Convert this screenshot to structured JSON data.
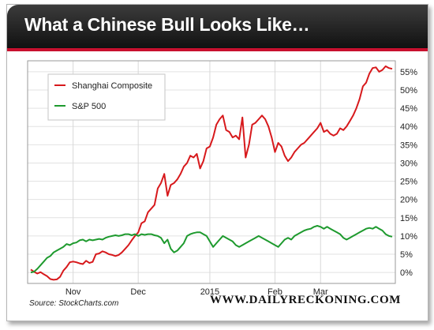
{
  "header": {
    "title": "What a Chinese Bull Looks Like…",
    "title_bg": "#111111",
    "accent_color": "#c8102e"
  },
  "footer": {
    "source": "Source: StockCharts.com",
    "site": "WWW.DAILYRECKONING.COM"
  },
  "chart_data": {
    "type": "line",
    "x_tick_labels": [
      "Nov",
      "Dec",
      "2015",
      "Feb",
      "Mar"
    ],
    "ylim": [
      -3,
      58
    ],
    "y_ticks": [
      0,
      5,
      10,
      15,
      20,
      25,
      30,
      35,
      40,
      45,
      50,
      55
    ],
    "y_tick_format": "{}%",
    "y_axis_side": "right",
    "grid": true,
    "legend_position": "top-left",
    "xlabel": "",
    "ylabel": "",
    "x": [
      0,
      1,
      2,
      3,
      4,
      5,
      6,
      7,
      8,
      9,
      10,
      11,
      12,
      13,
      14,
      15,
      16,
      17,
      18,
      19,
      20,
      21,
      22,
      23,
      24,
      25,
      26,
      27,
      28,
      29,
      30,
      31,
      32,
      33,
      34,
      35,
      36,
      37,
      38,
      39,
      40,
      41,
      42,
      43,
      44,
      45,
      46,
      47,
      48,
      49,
      50,
      51,
      52,
      53,
      54,
      55,
      56,
      57,
      58,
      59,
      60,
      61,
      62,
      63,
      64,
      65,
      66,
      67,
      68,
      69,
      70,
      71,
      72,
      73,
      74,
      75,
      76,
      77,
      78,
      79,
      80,
      81,
      82,
      83,
      84,
      85,
      86,
      87,
      88,
      89,
      90,
      91,
      92,
      93,
      94,
      95,
      96,
      97,
      98,
      99,
      100,
      101,
      102,
      103,
      104,
      105,
      106,
      107,
      108,
      109,
      110,
      111
    ],
    "x_tick_index": [
      13,
      33,
      55,
      75,
      89
    ],
    "series": [
      {
        "name": "Shanghai Composite",
        "color": "#d7191c",
        "values": [
          0.8,
          0.2,
          -0.3,
          0.1,
          -0.5,
          -1.0,
          -1.8,
          -2.0,
          -1.9,
          -1.2,
          0.5,
          1.5,
          2.8,
          3.0,
          2.8,
          2.5,
          2.3,
          3.2,
          2.6,
          2.9,
          5.0,
          5.2,
          5.8,
          5.5,
          5.0,
          4.8,
          4.5,
          4.8,
          5.5,
          6.5,
          7.5,
          8.8,
          10.0,
          11.0,
          13.5,
          14.0,
          16.5,
          17.5,
          18.5,
          23.0,
          24.5,
          27.0,
          21.0,
          24.0,
          24.5,
          25.5,
          27.0,
          29.0,
          30.0,
          32.0,
          31.5,
          32.5,
          28.5,
          30.5,
          34.0,
          34.5,
          37.0,
          40.5,
          42.0,
          43.0,
          39.0,
          38.5,
          37.0,
          37.5,
          36.5,
          42.5,
          31.5,
          35.0,
          40.5,
          41.0,
          42.0,
          43.0,
          42.0,
          40.0,
          37.0,
          33.0,
          35.5,
          34.5,
          32.0,
          30.5,
          31.5,
          33.0,
          34.0,
          35.0,
          35.5,
          36.5,
          37.5,
          38.5,
          39.5,
          41.0,
          38.5,
          39.0,
          38.0,
          37.5,
          38.0,
          39.5,
          39.0,
          40.0,
          41.5,
          43.0,
          45.0,
          47.5,
          51.0,
          52.0,
          54.5,
          56.0,
          56.2,
          55.0,
          55.5,
          56.5,
          56.0,
          55.8
        ]
      },
      {
        "name": "S&P 500",
        "color": "#1e9a2e",
        "values": [
          0.0,
          0.2,
          1.0,
          2.0,
          3.0,
          4.0,
          4.5,
          5.5,
          6.0,
          6.5,
          7.0,
          7.8,
          7.5,
          8.0,
          8.2,
          8.8,
          9.0,
          8.5,
          9.0,
          8.8,
          9.0,
          9.2,
          9.0,
          9.5,
          9.8,
          10.0,
          10.2,
          10.0,
          10.2,
          10.5,
          10.5,
          10.2,
          10.5,
          10.0,
          10.5,
          10.3,
          10.5,
          10.5,
          10.2,
          10.0,
          9.5,
          8.0,
          9.0,
          6.5,
          5.5,
          6.0,
          7.0,
          8.0,
          10.0,
          10.5,
          10.8,
          11.0,
          11.0,
          10.5,
          10.0,
          8.5,
          7.0,
          8.0,
          9.0,
          10.0,
          9.5,
          9.0,
          8.5,
          7.5,
          7.0,
          7.5,
          8.0,
          8.5,
          9.0,
          9.5,
          10.0,
          9.5,
          9.0,
          8.5,
          8.0,
          7.5,
          7.0,
          8.0,
          9.0,
          9.5,
          9.0,
          10.0,
          10.5,
          11.0,
          11.5,
          11.8,
          12.0,
          12.5,
          12.8,
          12.5,
          12.0,
          12.5,
          12.0,
          11.5,
          11.0,
          10.5,
          9.5,
          9.0,
          9.5,
          10.0,
          10.5,
          11.0,
          11.5,
          12.0,
          12.2,
          12.0,
          12.5,
          12.0,
          11.5,
          10.5,
          10.0,
          9.8
        ]
      }
    ]
  }
}
